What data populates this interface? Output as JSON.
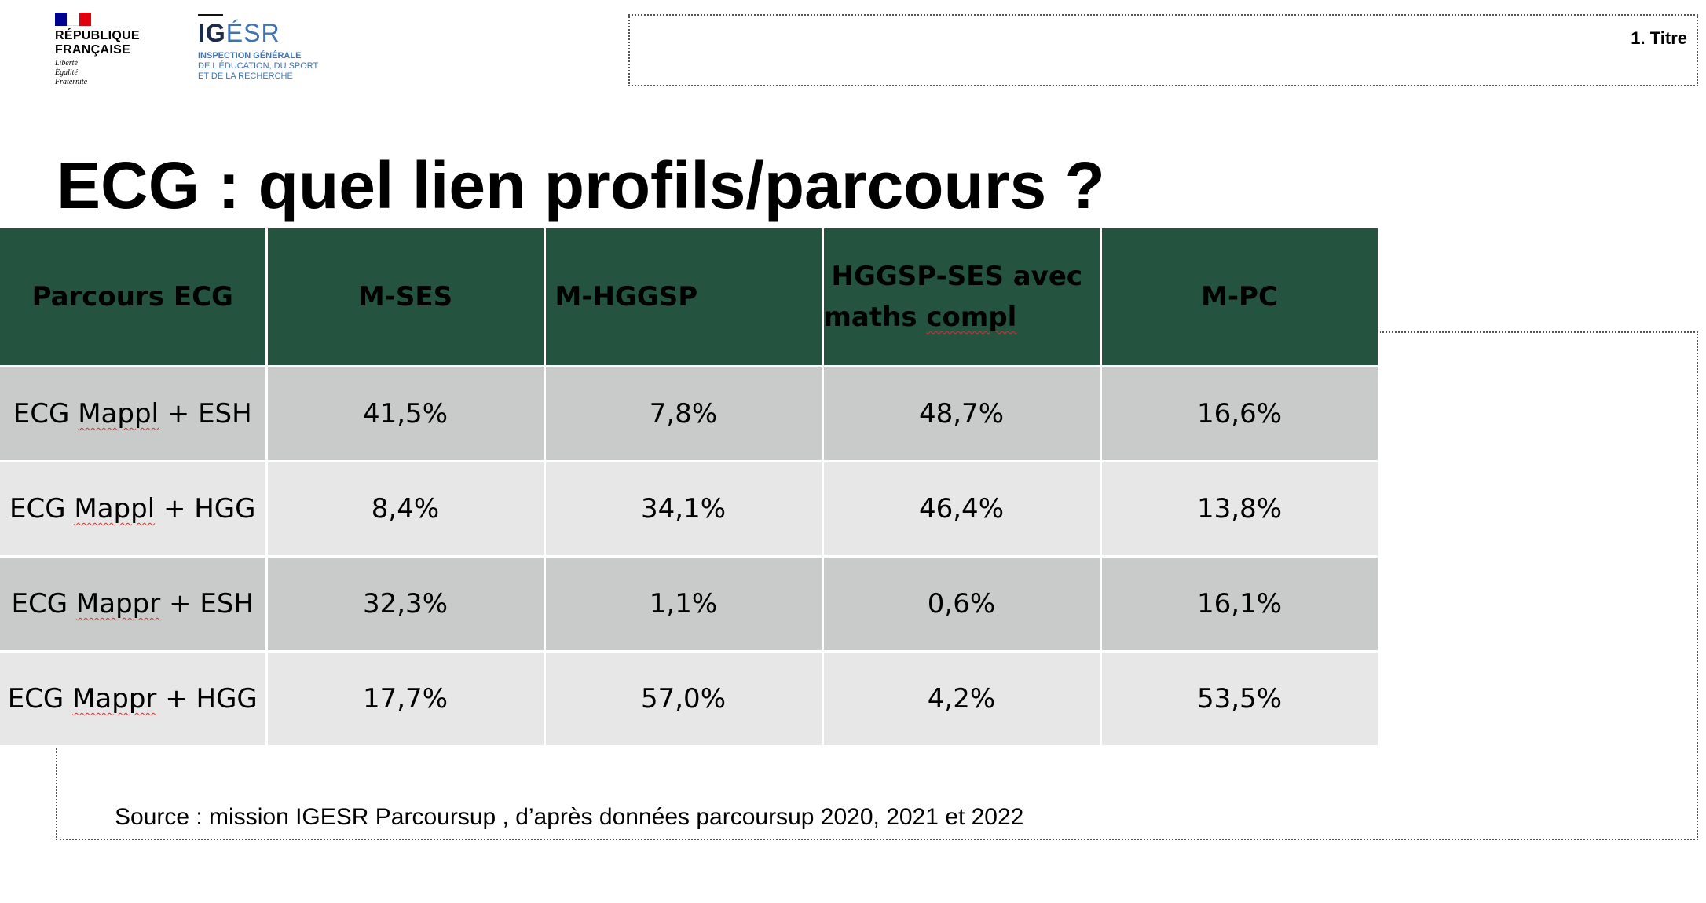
{
  "header": {
    "rf_logo": {
      "flag_colors": [
        "#000091",
        "#ffffff",
        "#e1000f"
      ],
      "name_lines": [
        "RÉPUBLIQUE",
        "FRANÇAISE"
      ],
      "motto_lines": [
        "Liberté",
        "Égalité",
        "Fraternité"
      ]
    },
    "igesr_logo": {
      "wordmark_a": "IG",
      "wordmark_b": "ÉSR",
      "subtitle_lines": [
        "INSPECTION GÉNÉRALE",
        "DE L'ÉDUCATION, DU SPORT",
        "ET DE LA RECHERCHE"
      ]
    },
    "placeholder_label": "1. Titre"
  },
  "title": "ECG : quel lien profils/parcours ?",
  "table": {
    "columns": [
      {
        "label": "Parcours ECG"
      },
      {
        "label": "M-SES"
      },
      {
        "label": "M-HGGSP"
      },
      {
        "label_line1": "HGGSP-SES avec",
        "label_line2_a": "maths ",
        "label_line2_b": "compl"
      },
      {
        "label": "M-PC"
      }
    ],
    "rows": [
      {
        "name_a": "ECG ",
        "name_b": "Mappl",
        "name_c": " + ESH",
        "values": [
          "41,5%",
          "7,8%",
          "48,7%",
          "16,6%"
        ]
      },
      {
        "name_a": "ECG ",
        "name_b": "Mappl",
        "name_c": " + HGG",
        "values": [
          "8,4%",
          "34,1%",
          "46,4%",
          "13,8%"
        ]
      },
      {
        "name_a": "ECG ",
        "name_b": "Mappr",
        "name_c": " + ESH",
        "values": [
          "32,3%",
          "1,1%",
          "0,6%",
          "16,1%"
        ]
      },
      {
        "name_a": "ECG ",
        "name_b": "Mappr",
        "name_c": " + HGG",
        "values": [
          "17,7%",
          "57,0%",
          "4,2%",
          "53,5%"
        ]
      }
    ],
    "colors": {
      "header_bg": "#245440",
      "row_dark": "#c9cbca",
      "row_light": "#e6e7e6"
    }
  },
  "source": "Source : mission IGESR Parcoursup , d’après données parcoursup 2020, 2021 et 2022"
}
